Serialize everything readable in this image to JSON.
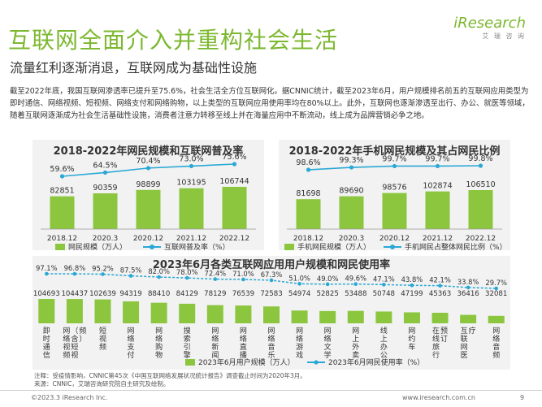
{
  "header": {
    "title": "互联网全面介入并重构社会生活",
    "subtitle": "流量红利逐渐消退，互联网成为基础性设施",
    "logo": "iResearch",
    "logo_sub": "艾 瑞 咨 询"
  },
  "paragraph": "截至2022年底，我国互联网渗透率已提升至75.6%，社会生活全方位互联网化。据CNNIC统计，截至2023年6月，用户规模排名前五的互联网应用类型为即时通信、网络视频、短视频、网络支付和网络购物，以上类型的互联网应用使用率均在80%以上。此外，互联网也逐渐渗透至出行、办公、就医等领域，随着互联网逐渐成为社会生活基础性设施，消费者注意力转移至线上并在海量应用中不断流动，线上成为品牌营销必争之地。",
  "colors": {
    "bar": "#8cc63f",
    "line": "#29a8d6",
    "title": "#7cb82f"
  },
  "chart_data": [
    {
      "type": "bar",
      "title": "2018-2022年网民规模和互联网普及率",
      "categories": [
        "2018.12",
        "2020.3",
        "2020.12",
        "2021.12",
        "2022.12"
      ],
      "series": [
        {
          "name": "网民规模（万人）",
          "kind": "bar",
          "values": [
            82851,
            90359,
            98899,
            103195,
            106744
          ]
        },
        {
          "name": "互联网普及率（%）",
          "kind": "line",
          "values": [
            59.6,
            64.5,
            70.4,
            73.0,
            75.6
          ],
          "labels": [
            "59.6%",
            "64.5%",
            "70.4%",
            "73.0%",
            "75.6%"
          ]
        }
      ]
    },
    {
      "type": "bar",
      "title": "2018-2022年手机网民规模及其占网民比例",
      "categories": [
        "2018.12",
        "2020.3",
        "2020.12",
        "2021.12",
        "2022.12"
      ],
      "series": [
        {
          "name": "手机网民规模（万人）",
          "kind": "bar",
          "values": [
            81698,
            89690,
            98576,
            102874,
            106510
          ]
        },
        {
          "name": "手机网民占整体网民比例（%）",
          "kind": "line",
          "values": [
            98.6,
            99.3,
            99.7,
            99.7,
            99.8
          ],
          "labels": [
            "98.6%",
            "99.3%",
            "99.7%",
            "99.7%",
            "99.8%"
          ]
        }
      ]
    },
    {
      "type": "bar",
      "title": "2023年6月各类互联网应用用户规模和网民使用率",
      "categories": [
        "即时通信",
        "网络视频（含短视频）",
        "短视频",
        "网络支付",
        "网络购物",
        "搜索引擎",
        "网络新闻",
        "网络直播",
        "网络音乐",
        "网络游戏",
        "网络文学",
        "网上外卖",
        "线上办公",
        "网约车",
        "在线旅行预订",
        "互联网医疗",
        "网络音频"
      ],
      "series": [
        {
          "name": "2023年6月用户规模（万人）",
          "kind": "bar",
          "values": [
            104693,
            104437,
            102639,
            94319,
            88410,
            84129,
            78129,
            76539,
            72583,
            54974,
            52825,
            53488,
            50748,
            47199,
            45363,
            36416,
            32081
          ]
        },
        {
          "name": "2023年6月网民使用率（%）",
          "kind": "line",
          "values": [
            97.1,
            96.8,
            95.2,
            87.5,
            82.0,
            78.0,
            72.4,
            71.0,
            67.3,
            51.0,
            49.0,
            49.6,
            47.1,
            43.8,
            42.1,
            33.8,
            29.7
          ],
          "labels": [
            "97.1%",
            "96.8%",
            "95.2%",
            "87.5%",
            "82.0%",
            "78.0%",
            "72.4%",
            "71.0%",
            "67.3%",
            "51.0%",
            "49.0%",
            "49.6%",
            "47.1%",
            "43.8%",
            "42.1%",
            "33.8%",
            "29.7%"
          ]
        }
      ]
    }
  ],
  "note": {
    "line1": "注释：受疫情影响，CNNIC第45次《中国互联网络发展状况统计报告》调查截止时间为2020年3月。",
    "line2": "来源：CNNIC，艾瑞咨询研究院自主研究及绘制。"
  },
  "footer": {
    "copyright": "©2023.3 iResearch Inc.",
    "website": "www.iresearch.com.cn",
    "page": "9"
  }
}
